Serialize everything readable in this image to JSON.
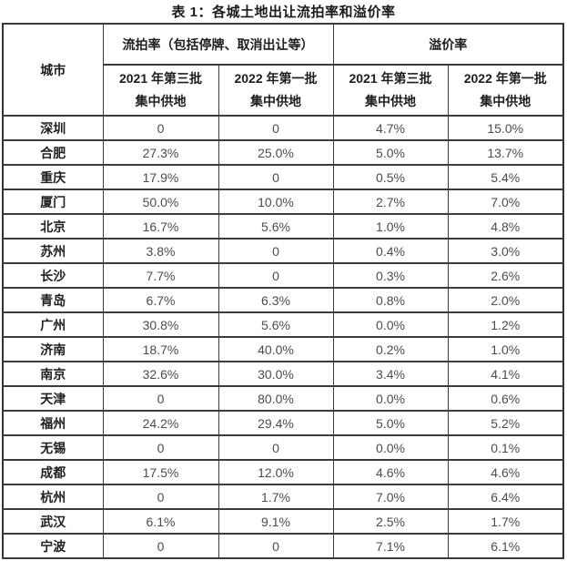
{
  "page": {
    "title": "表 1：各城土地出让流拍率和溢价率"
  },
  "table": {
    "headers": {
      "city": "城市",
      "groups": [
        {
          "label": "流拍率（包括停牌、取消出让等）"
        },
        {
          "label": "溢价率"
        }
      ],
      "batches": [
        {
          "line1": "2021 年第三批",
          "line2": "集中供地"
        },
        {
          "line1": "2022 年第一批",
          "line2": "集中供地"
        },
        {
          "line1": "2021 年第三批",
          "line2": "集中供地"
        },
        {
          "line1": "2022 年第一批",
          "line2": "集中供地"
        }
      ]
    },
    "rows": [
      {
        "city": "深圳",
        "values": [
          "0",
          "0",
          "4.7%",
          "15.0%"
        ]
      },
      {
        "city": "合肥",
        "values": [
          "27.3%",
          "25.0%",
          "5.0%",
          "13.7%"
        ]
      },
      {
        "city": "重庆",
        "values": [
          "17.9%",
          "0",
          "0.5%",
          "5.4%"
        ]
      },
      {
        "city": "厦门",
        "values": [
          "50.0%",
          "10.0%",
          "2.7%",
          "7.0%"
        ]
      },
      {
        "city": "北京",
        "values": [
          "16.7%",
          "5.6%",
          "1.0%",
          "4.8%"
        ]
      },
      {
        "city": "苏州",
        "values": [
          "3.8%",
          "0",
          "0.4%",
          "3.0%"
        ]
      },
      {
        "city": "长沙",
        "values": [
          "7.7%",
          "0",
          "0.3%",
          "2.6%"
        ]
      },
      {
        "city": "青岛",
        "values": [
          "6.7%",
          "6.3%",
          "0.8%",
          "2.0%"
        ]
      },
      {
        "city": "广州",
        "values": [
          "30.8%",
          "5.6%",
          "0.0%",
          "1.2%"
        ]
      },
      {
        "city": "济南",
        "values": [
          "18.7%",
          "40.0%",
          "0.2%",
          "1.0%"
        ]
      },
      {
        "city": "南京",
        "values": [
          "32.6%",
          "30.0%",
          "3.4%",
          "4.1%"
        ]
      },
      {
        "city": "天津",
        "values": [
          "0",
          "80.0%",
          "0.0%",
          "0.6%"
        ]
      },
      {
        "city": "福州",
        "values": [
          "24.2%",
          "29.4%",
          "5.0%",
          "5.2%"
        ]
      },
      {
        "city": "无锡",
        "values": [
          "0",
          "0",
          "0.0%",
          "0.1%"
        ]
      },
      {
        "city": "成都",
        "values": [
          "17.5%",
          "12.0%",
          "4.6%",
          "4.6%"
        ]
      },
      {
        "city": "杭州",
        "values": [
          "0",
          "1.7%",
          "7.0%",
          "6.4%"
        ]
      },
      {
        "city": "武汉",
        "values": [
          "6.1%",
          "9.1%",
          "2.5%",
          "1.7%"
        ]
      },
      {
        "city": "宁波",
        "values": [
          "0",
          "0",
          "7.1%",
          "6.1%"
        ]
      }
    ]
  },
  "colors": {
    "border": "#3b3b3b",
    "header_text": "#1c1c1c",
    "value_text": "#4c4c4c",
    "background": "#ffffff"
  }
}
